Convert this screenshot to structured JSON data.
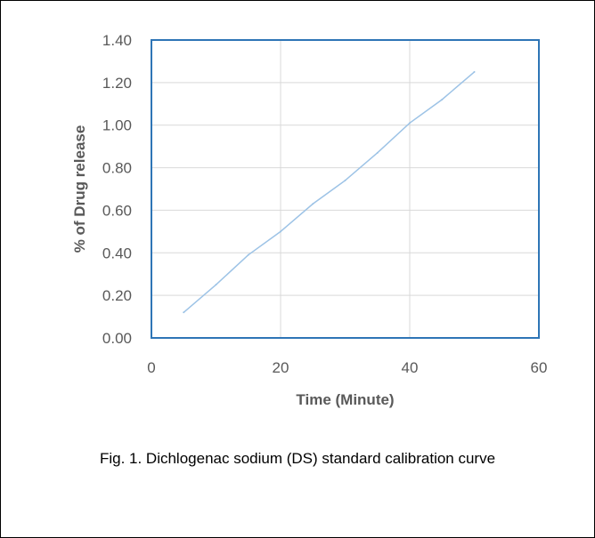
{
  "caption": "Fig. 1. Dichlogenac sodium (DS) standard calibration curve",
  "chart_data": {
    "type": "line",
    "title": "",
    "xlabel": "Time (Minute)",
    "ylabel": "% of Drug release",
    "xlim": [
      0,
      60
    ],
    "ylim": [
      0,
      1.4
    ],
    "x_ticks": [
      "0",
      "20",
      "40",
      "60"
    ],
    "y_ticks": [
      "0.00",
      "0.20",
      "0.40",
      "0.60",
      "0.80",
      "1.00",
      "1.20",
      "1.40"
    ],
    "grid": true,
    "legend": "none",
    "series": [
      {
        "x": [
          5,
          10,
          15,
          20,
          25,
          30,
          35,
          40,
          45,
          50
        ],
        "y": [
          0.12,
          0.25,
          0.39,
          0.5,
          0.63,
          0.74,
          0.87,
          1.01,
          1.12,
          1.25
        ]
      }
    ],
    "colors": {
      "line": "#9dc3e6",
      "frame": "#2e75b6",
      "grid": "#d9d9d9"
    }
  }
}
